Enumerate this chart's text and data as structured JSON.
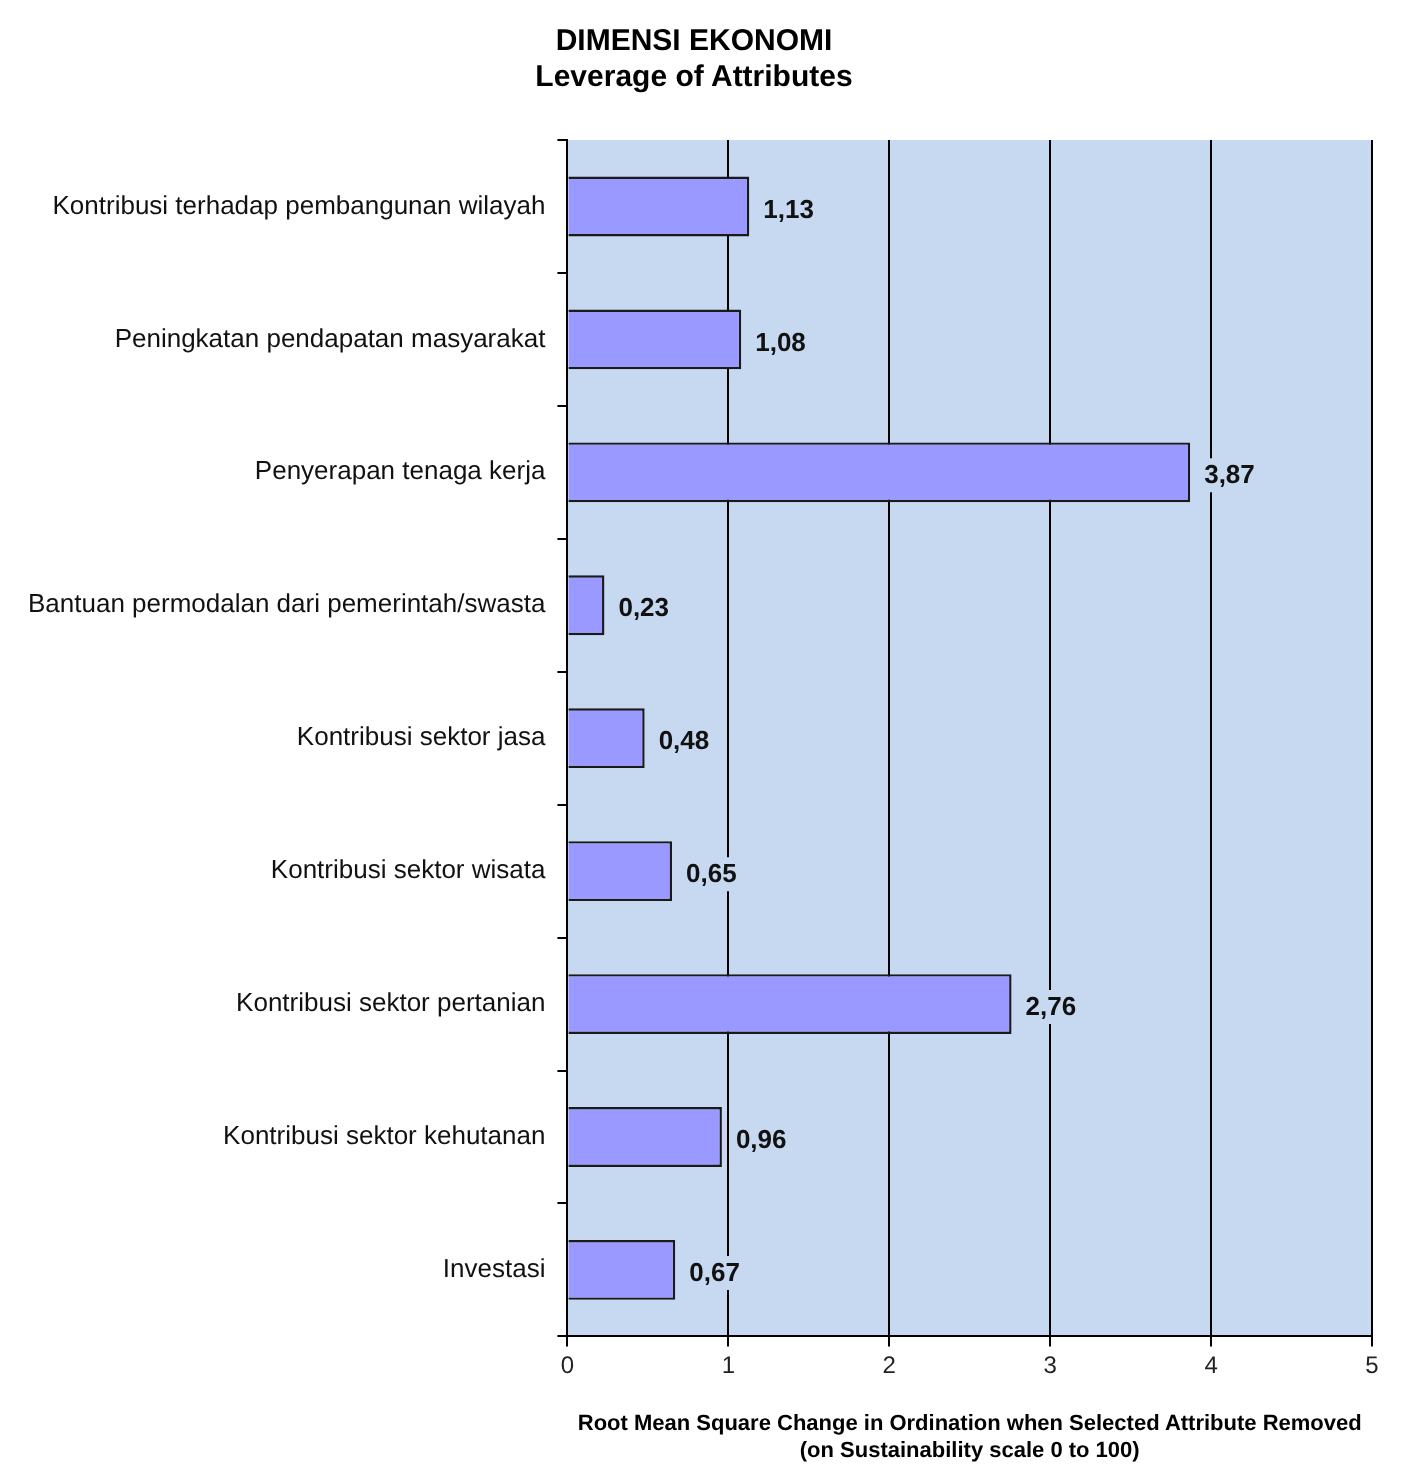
{
  "chart_data": {
    "type": "bar",
    "orientation": "horizontal",
    "title": "DIMENSI EKONOMI",
    "subtitle": "Leverage of Attributes",
    "xlabel": "Root Mean Square Change in Ordination when Selected Attribute Removed\n(on Sustainability scale 0 to 100)",
    "categories": [
      "Kontribusi terhadap pembangunan wilayah",
      "Peningkatan pendapatan masyarakat",
      "Penyerapan tenaga kerja",
      "Bantuan permodalan dari pemerintah/swasta",
      "Kontribusi sektor jasa",
      "Kontribusi sektor wisata",
      "Kontribusi sektor pertanian",
      "Kontribusi sektor kehutanan",
      "Investasi"
    ],
    "values": [
      1.13,
      1.08,
      3.87,
      0.23,
      0.48,
      0.65,
      2.76,
      0.96,
      0.67
    ],
    "value_labels": [
      "1,13",
      "1,08",
      "3,87",
      "0,23",
      "0,48",
      "0,65",
      "2,76",
      "0,96",
      "0,67"
    ],
    "color": "#9999ff",
    "xlim": [
      0,
      5
    ],
    "xticks": [
      0,
      1,
      2,
      3,
      4,
      5
    ],
    "grid": "x",
    "legend": false
  }
}
